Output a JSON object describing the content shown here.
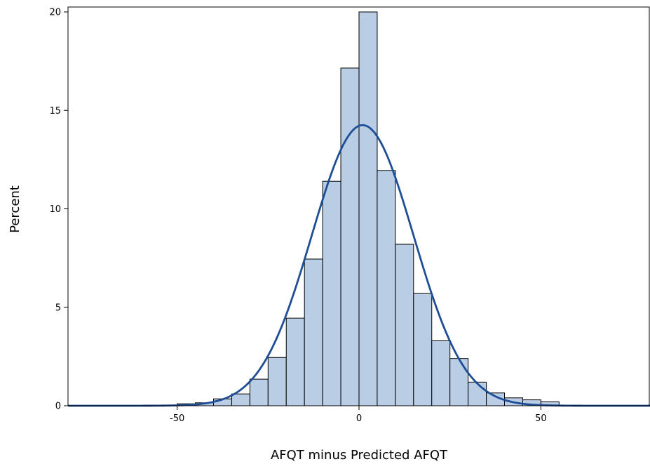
{
  "chart_data": {
    "type": "bar",
    "subtype": "histogram",
    "title": "",
    "xlabel": "AFQT minus Predicted AFQT",
    "ylabel": "Percent",
    "xlim": [
      -80,
      80
    ],
    "ylim": [
      0,
      20
    ],
    "x_ticks": [
      -50,
      0,
      50
    ],
    "x_tick_labels": [
      "-50",
      "0",
      "50"
    ],
    "y_ticks": [
      0,
      5,
      10,
      15,
      20
    ],
    "y_tick_labels": [
      "0",
      "5",
      "10",
      "15",
      "20"
    ],
    "bin_width": 5,
    "bins": [
      {
        "start": -50,
        "end": -45,
        "value": 0.1
      },
      {
        "start": -45,
        "end": -40,
        "value": 0.15
      },
      {
        "start": -40,
        "end": -35,
        "value": 0.35
      },
      {
        "start": -35,
        "end": -30,
        "value": 0.6
      },
      {
        "start": -30,
        "end": -25,
        "value": 1.35
      },
      {
        "start": -25,
        "end": -20,
        "value": 2.45
      },
      {
        "start": -20,
        "end": -15,
        "value": 4.45
      },
      {
        "start": -15,
        "end": -10,
        "value": 7.45
      },
      {
        "start": -10,
        "end": -5,
        "value": 11.4
      },
      {
        "start": -5,
        "end": 0,
        "value": 17.15
      },
      {
        "start": 0,
        "end": 5,
        "value": 20.0
      },
      {
        "start": 5,
        "end": 10,
        "value": 11.95
      },
      {
        "start": 10,
        "end": 15,
        "value": 8.2
      },
      {
        "start": 15,
        "end": 20,
        "value": 5.7
      },
      {
        "start": 20,
        "end": 25,
        "value": 3.3
      },
      {
        "start": 25,
        "end": 30,
        "value": 2.4
      },
      {
        "start": 30,
        "end": 35,
        "value": 1.2
      },
      {
        "start": 35,
        "end": 40,
        "value": 0.65
      },
      {
        "start": 40,
        "end": 45,
        "value": 0.4
      },
      {
        "start": 45,
        "end": 50,
        "value": 0.3
      },
      {
        "start": 50,
        "end": 55,
        "value": 0.2
      }
    ],
    "overlay": {
      "type": "normal-curve",
      "mean": 1.0,
      "std": 14.0,
      "peak": 14.25
    },
    "grid": false,
    "legend": "none",
    "colors": {
      "bar_fill": "#b9cde5",
      "bar_stroke": "#000000",
      "curve": "#1f4e96"
    }
  }
}
